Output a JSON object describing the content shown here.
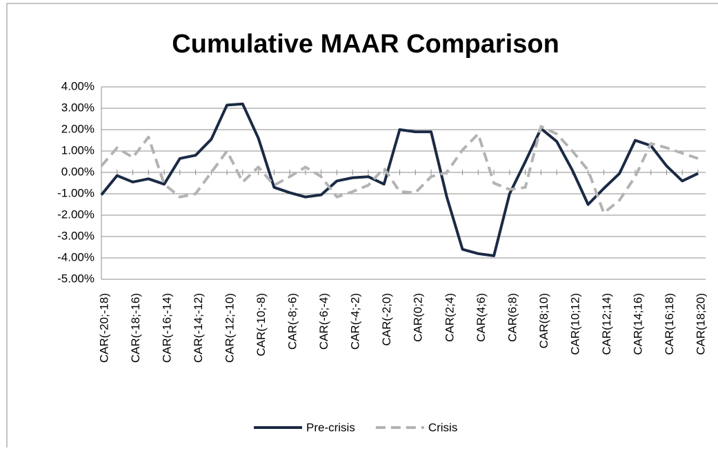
{
  "chart_data": {
    "type": "line",
    "title": "Cumulative MAAR Comparison",
    "categories": [
      "CAR(-20;-18)",
      null,
      "CAR(-18;-16)",
      null,
      "CAR(-16;-14)",
      null,
      "CAR(-14;-12)",
      null,
      "CAR(-12;-10)",
      null,
      "CAR(-10;-8)",
      null,
      "CAR(-8;-6)",
      null,
      "CAR(-6;-4)",
      null,
      "CAR(-4;-2)",
      null,
      "CAR(-2;0)",
      null,
      "CAR(0;2)",
      null,
      "CAR(2;4)",
      null,
      "CAR(4;6)",
      null,
      "CAR(6;8)",
      null,
      "CAR(8;10)",
      null,
      "CAR(10;12)",
      null,
      "CAR(12;14)",
      null,
      "CAR(14;16)",
      null,
      "CAR(16;18)",
      null,
      "CAR(18;20)"
    ],
    "series": [
      {
        "name": "Pre-crisis",
        "color": "#1b2a44",
        "line_style": "solid",
        "values": [
          -1.05,
          -0.15,
          -0.45,
          -0.3,
          -0.55,
          0.65,
          0.8,
          1.55,
          3.15,
          3.2,
          1.6,
          -0.7,
          -0.95,
          -1.15,
          -1.05,
          -0.4,
          -0.25,
          -0.2,
          -0.55,
          2.0,
          1.9,
          1.9,
          -1.15,
          -3.6,
          -3.8,
          -3.9,
          -1.0,
          0.5,
          2.05,
          1.45,
          0.1,
          -1.5,
          -0.75,
          -0.05,
          1.5,
          1.25,
          0.3,
          -0.4,
          -0.05
        ]
      },
      {
        "name": "Crisis",
        "color": "#b3b3b3",
        "line_style": "dashed",
        "values": [
          0.3,
          1.15,
          0.7,
          1.65,
          -0.55,
          -1.15,
          -1.0,
          0.0,
          1.0,
          -0.45,
          0.25,
          -0.6,
          -0.2,
          0.25,
          -0.2,
          -1.15,
          -0.9,
          -0.6,
          0.2,
          -0.9,
          -0.95,
          -0.2,
          0.0,
          1.05,
          1.8,
          -0.5,
          -0.8,
          -0.7,
          2.15,
          1.8,
          1.0,
          0.1,
          -1.9,
          -1.3,
          -0.2,
          1.35,
          1.15,
          0.9,
          0.65
        ]
      }
    ],
    "ylim": [
      -5,
      4
    ],
    "yticks": [
      {
        "value": -5,
        "label": "-5.00%"
      },
      {
        "value": -4,
        "label": "-4.00%"
      },
      {
        "value": -3,
        "label": "-3.00%"
      },
      {
        "value": -2,
        "label": "-2.00%"
      },
      {
        "value": -1,
        "label": "-1.00%"
      },
      {
        "value": 0,
        "label": "0.00%"
      },
      {
        "value": 1,
        "label": "1.00%"
      },
      {
        "value": 2,
        "label": "2.00%"
      },
      {
        "value": 3,
        "label": "3.00%"
      },
      {
        "value": 4,
        "label": "4.00%"
      }
    ],
    "grid": true,
    "legend": "bottom"
  }
}
